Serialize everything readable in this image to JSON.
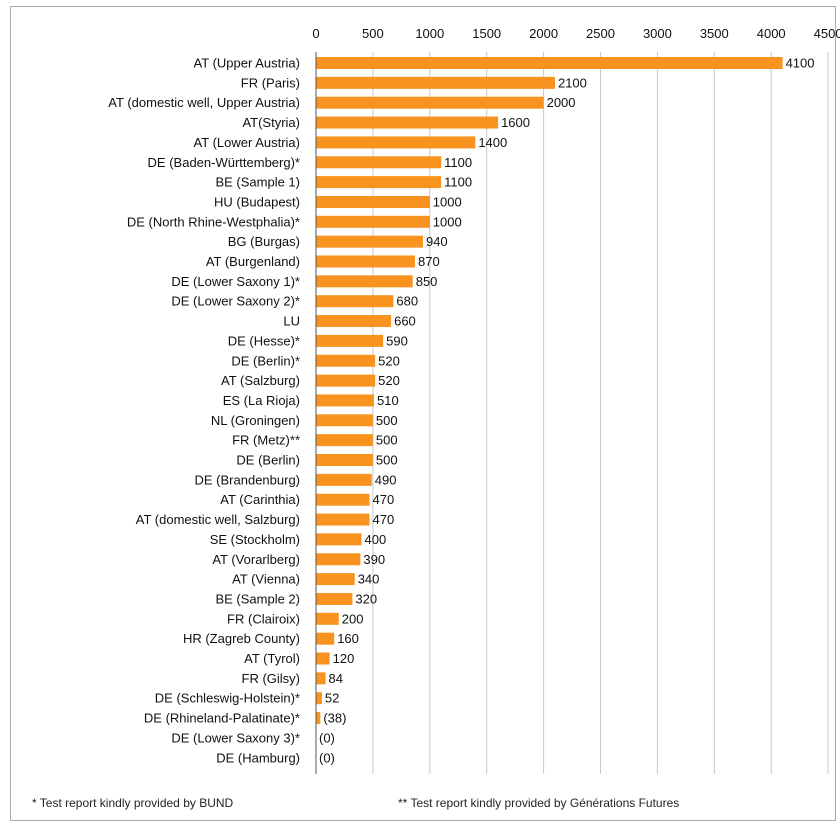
{
  "colors": {
    "bar": "#f7931e",
    "grid": "#c8c8c8",
    "axis": "#555555",
    "text": "#111111"
  },
  "chart_data": {
    "type": "bar",
    "orientation": "horizontal",
    "xlim": [
      0,
      4500
    ],
    "xticks": [
      0,
      500,
      1000,
      1500,
      2000,
      2500,
      3000,
      3500,
      4000,
      4500
    ],
    "x_axis_position": "top",
    "grid": true,
    "categories": [
      "AT (Upper Austria)",
      "FR (Paris)",
      "AT (domestic well, Upper Austria)",
      "AT(Styria)",
      "AT (Lower Austria)",
      "DE (Baden-Württemberg)*",
      "BE (Sample 1)",
      "HU (Budapest)",
      "DE (North Rhine-Westphalia)*",
      "BG (Burgas)",
      "AT (Burgenland)",
      "DE (Lower Saxony 1)*",
      "DE (Lower Saxony 2)*",
      "LU",
      "DE (Hesse)*",
      "DE (Berlin)*",
      "AT (Salzburg)",
      "ES (La Rioja)",
      "NL (Groningen)",
      "FR (Metz)**",
      "DE (Berlin)",
      "DE (Brandenburg)",
      "AT (Carinthia)",
      "AT (domestic well, Salzburg)",
      "SE (Stockholm)",
      "AT (Vorarlberg)",
      "AT (Vienna)",
      "BE (Sample 2)",
      "FR (Clairoix)",
      "HR (Zagreb County)",
      "AT (Tyrol)",
      "FR (Gilsy)",
      "DE (Schleswig-Holstein)*",
      "DE (Rhineland-Palatinate)*",
      "DE (Lower Saxony 3)*",
      "DE (Hamburg)"
    ],
    "values": [
      4100,
      2100,
      2000,
      1600,
      1400,
      1100,
      1100,
      1000,
      1000,
      940,
      870,
      850,
      680,
      660,
      590,
      520,
      520,
      510,
      500,
      500,
      500,
      490,
      470,
      470,
      400,
      390,
      340,
      320,
      200,
      160,
      120,
      84,
      52,
      38,
      0,
      0
    ],
    "data_labels": [
      "4100",
      "2100",
      "2000",
      "1600",
      "1400",
      "1100",
      "1100",
      "1000",
      "1000",
      "940",
      "870",
      "850",
      "680",
      "660",
      "590",
      "520",
      "520",
      "510",
      "500",
      "500",
      "500",
      "490",
      "470",
      "470",
      "400",
      "390",
      "340",
      "320",
      "200",
      "160",
      "120",
      "84",
      "52",
      "(38)",
      "(0)",
      "(0)"
    ]
  },
  "footnotes": {
    "bund": "* Test report kindly provided by BUND",
    "gf": "** Test report kindly provided by Générations Futures"
  }
}
